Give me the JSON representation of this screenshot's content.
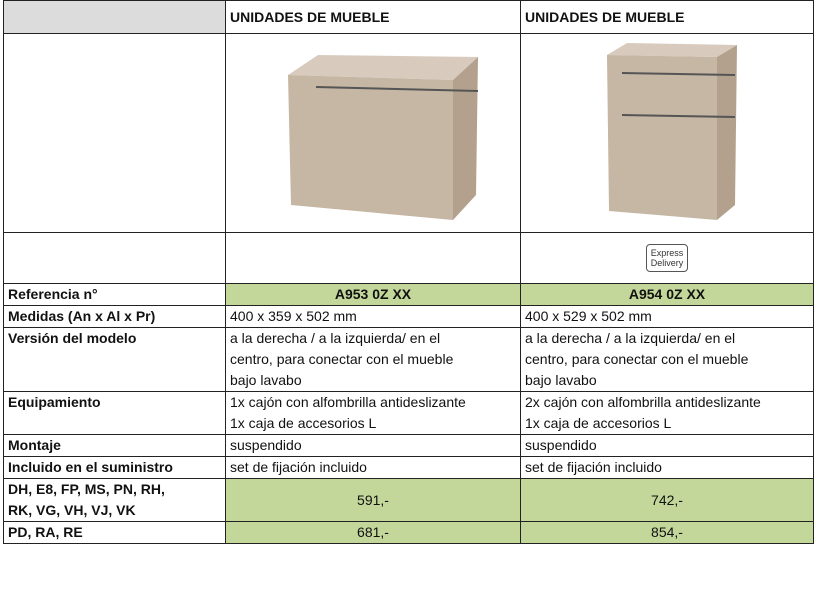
{
  "header": {
    "columns": [
      "UNIDADES DE MUEBLE",
      "UNIDADES DE MUEBLE"
    ]
  },
  "badge": [
    "Express",
    "Delivery"
  ],
  "rows": [
    {
      "label": [
        "Referencia n°"
      ],
      "values": [
        [
          "A953 0Z XX"
        ],
        [
          "A954 0Z XX"
        ]
      ],
      "highlight": true
    },
    {
      "label": [
        "Medidas (An x Al x Pr)"
      ],
      "values": [
        [
          "400 x 359 x 502 mm"
        ],
        [
          "400 x 529 x 502 mm"
        ]
      ]
    },
    {
      "label": [
        "Versión del modelo"
      ],
      "values": [
        [
          "a la derecha / a la izquierda/ en el",
          "centro, para conectar con el mueble",
          "bajo lavabo"
        ],
        [
          "a la derecha / a la izquierda/ en el",
          "centro, para conectar con el mueble",
          "bajo lavabo"
        ]
      ]
    },
    {
      "label": [
        "Equipamiento"
      ],
      "values": [
        [
          "1x cajón con alfombrilla antideslizante",
          "1x caja de accesorios L"
        ],
        [
          "2x cajón con alfombrilla antideslizante",
          "1x caja de accesorios L"
        ]
      ]
    },
    {
      "label": [
        "Montaje"
      ],
      "values": [
        [
          "suspendido"
        ],
        [
          "suspendido"
        ]
      ]
    },
    {
      "label": [
        "Incluido en el suministro"
      ],
      "values": [
        [
          "set de fijación incluido"
        ],
        [
          "set de fijación incluido"
        ]
      ]
    },
    {
      "label": [
        "DH, E8, FP, MS, PN, RH,",
        "RK, VG, VH, VJ, VK"
      ],
      "values": [
        [
          "591,-"
        ],
        [
          "742,-"
        ]
      ],
      "highlight": true,
      "center": true
    },
    {
      "label": [
        "PD, RA, RE"
      ],
      "values": [
        [
          "681,-"
        ],
        [
          "854,-"
        ]
      ],
      "highlight": true,
      "center": true
    }
  ]
}
